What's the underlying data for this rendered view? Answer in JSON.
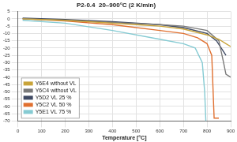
{
  "chart_data": {
    "type": "line",
    "title": "P2-0.4  20–900°C (2 K/min)",
    "x_label": "Temperature [°C]",
    "xlim": [
      0,
      900
    ],
    "xticks": [
      0,
      100,
      200,
      300,
      400,
      500,
      600,
      700,
      800,
      900
    ],
    "ylim": [
      -70,
      5
    ],
    "yticks": [
      5,
      0,
      -5,
      -10,
      -15,
      -20,
      -25,
      -30,
      -35,
      -40,
      -45,
      -50,
      -55,
      -60,
      -65,
      -70
    ],
    "grid": true,
    "legend": "lower left",
    "series": [
      {
        "name": "Y6E4 without VL",
        "color": "#c9a43a",
        "x": [
          20,
          100,
          200,
          300,
          400,
          500,
          600,
          700,
          750,
          800,
          850,
          880,
          900
        ],
        "values": [
          0,
          -0.5,
          -1,
          -2,
          -3,
          -4,
          -5,
          -7,
          -9,
          -11,
          -14,
          -17,
          -19
        ]
      },
      {
        "name": "Y6C4 without VL",
        "color": "#7a7a7a",
        "x": [
          20,
          200,
          400,
          600,
          700,
          800,
          850,
          870,
          880,
          900
        ],
        "values": [
          0,
          -1,
          -2.5,
          -4,
          -5,
          -8,
          -15,
          -30,
          -38,
          -40
        ]
      },
      {
        "name": "Y5D2 VL 25 %",
        "color": "#3f4a63",
        "x": [
          20,
          200,
          400,
          600,
          700,
          800,
          840,
          860,
          880
        ],
        "values": [
          0.5,
          -0.5,
          -2,
          -4,
          -6,
          -10,
          -15,
          -20,
          -25
        ]
      },
      {
        "name": "Y5C2 VL 50 %",
        "color": "#e07030",
        "x": [
          20,
          200,
          400,
          600,
          700,
          760,
          800,
          820,
          830,
          850
        ],
        "values": [
          0,
          -1.5,
          -4,
          -8,
          -10,
          -13,
          -17,
          -25,
          -68,
          -68
        ]
      },
      {
        "name": "Y5E1 VL 75 %",
        "color": "#86cbd3",
        "x": [
          20,
          200,
          400,
          600,
          700,
          750,
          780,
          790,
          795
        ],
        "values": [
          -1,
          -3,
          -8,
          -14,
          -17,
          -20,
          -30,
          -50,
          -70
        ]
      }
    ]
  }
}
